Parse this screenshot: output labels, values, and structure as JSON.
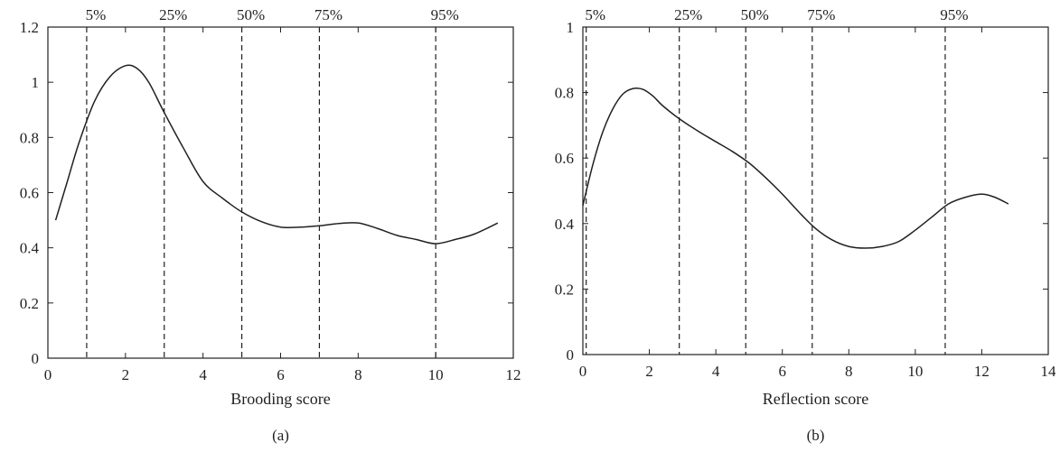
{
  "chart_data": [
    {
      "type": "line",
      "panel_label": "(a)",
      "xlabel": "Brooding score",
      "ylabel": "",
      "xlim": [
        0,
        12
      ],
      "ylim": [
        0,
        1.2
      ],
      "x_ticks": [
        0,
        2,
        4,
        6,
        8,
        10,
        12
      ],
      "y_ticks": [
        0,
        0.2,
        0.4,
        0.6,
        0.8,
        1,
        1.2
      ],
      "x_tick_labels": [
        "0",
        "2",
        "4",
        "6",
        "8",
        "10",
        "12"
      ],
      "y_tick_labels": [
        "0",
        "0.2",
        "0.4",
        "0.6",
        "0.8",
        "1",
        "1.2"
      ],
      "percentile_lines": [
        {
          "label": "5%",
          "x": 1.0
        },
        {
          "label": "25%",
          "x": 3.0
        },
        {
          "label": "50%",
          "x": 5.0
        },
        {
          "label": "75%",
          "x": 7.0
        },
        {
          "label": "95%",
          "x": 10.0
        }
      ],
      "series": [
        {
          "x": [
            0.2,
            0.5,
            0.8,
            1.2,
            1.6,
            2.0,
            2.3,
            2.6,
            3.0,
            3.5,
            4.0,
            4.5,
            5.0,
            5.5,
            6.0,
            6.5,
            7.0,
            7.5,
            8.0,
            8.5,
            9.0,
            9.5,
            10.0,
            10.5,
            11.0,
            11.6
          ],
          "y": [
            0.5,
            0.64,
            0.78,
            0.93,
            1.02,
            1.06,
            1.05,
            1.0,
            0.89,
            0.76,
            0.64,
            0.58,
            0.53,
            0.495,
            0.475,
            0.475,
            0.48,
            0.488,
            0.49,
            0.47,
            0.445,
            0.43,
            0.415,
            0.43,
            0.45,
            0.49
          ]
        }
      ]
    },
    {
      "type": "line",
      "panel_label": "(b)",
      "xlabel": "Reflection score",
      "ylabel": "",
      "xlim": [
        0,
        14
      ],
      "ylim": [
        0,
        1
      ],
      "x_ticks": [
        0,
        2,
        4,
        6,
        8,
        10,
        12,
        14
      ],
      "y_ticks": [
        0,
        0.2,
        0.4,
        0.6,
        0.8,
        1
      ],
      "x_tick_labels": [
        "0",
        "2",
        "4",
        "6",
        "8",
        "10",
        "12",
        "14"
      ],
      "y_tick_labels": [
        "0",
        "0.2",
        "0.4",
        "0.6",
        "0.8",
        "1"
      ],
      "percentile_lines": [
        {
          "label": "5%",
          "x": 0.1
        },
        {
          "label": "25%",
          "x": 2.9
        },
        {
          "label": "50%",
          "x": 4.9
        },
        {
          "label": "75%",
          "x": 6.9
        },
        {
          "label": "95%",
          "x": 10.9
        }
      ],
      "series": [
        {
          "x": [
            0.0,
            0.3,
            0.6,
            0.9,
            1.2,
            1.5,
            1.8,
            2.1,
            2.4,
            2.9,
            3.5,
            4.0,
            4.5,
            5.0,
            5.5,
            6.0,
            6.5,
            7.0,
            7.5,
            8.0,
            8.5,
            9.0,
            9.5,
            10.0,
            10.5,
            11.0,
            11.5,
            12.0,
            12.4,
            12.8
          ],
          "y": [
            0.455,
            0.58,
            0.68,
            0.75,
            0.795,
            0.812,
            0.81,
            0.79,
            0.76,
            0.72,
            0.68,
            0.65,
            0.62,
            0.585,
            0.54,
            0.49,
            0.435,
            0.385,
            0.35,
            0.33,
            0.325,
            0.33,
            0.345,
            0.38,
            0.42,
            0.46,
            0.48,
            0.49,
            0.48,
            0.46
          ]
        }
      ]
    }
  ]
}
